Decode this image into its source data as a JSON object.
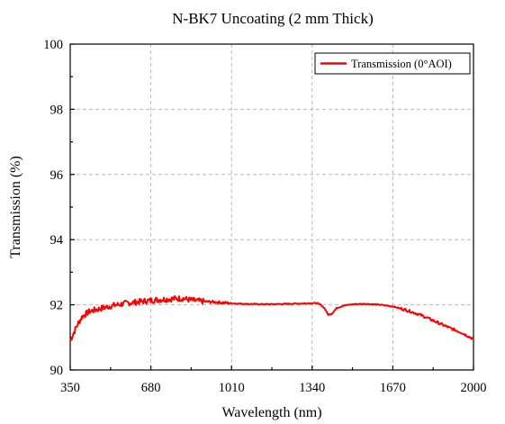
{
  "chart_data": {
    "type": "line",
    "title": "N-BK7 Uncoating (2 mm  Thick)",
    "xlabel": "Wavelength (nm)",
    "ylabel": "Transmission (%)",
    "xlim": [
      350,
      2000
    ],
    "ylim": [
      90,
      100
    ],
    "xticks": [
      350,
      680,
      1010,
      1340,
      1670,
      2000
    ],
    "yticks": [
      90,
      92,
      94,
      96,
      98,
      100
    ],
    "grid": true,
    "legend_position": "top-right",
    "series": [
      {
        "name": "Transmission (0°AOI)",
        "color": "#ff0000",
        "x": [
          350,
          365,
          380,
          400,
          430,
          470,
          520,
          580,
          640,
          700,
          760,
          810,
          840,
          870,
          900,
          950,
          1000,
          1060,
          1120,
          1180,
          1240,
          1300,
          1340,
          1360,
          1375,
          1390,
          1405,
          1420,
          1440,
          1470,
          1510,
          1560,
          1620,
          1670,
          1720,
          1780,
          1840,
          1900,
          1950,
          2000
        ],
        "y": [
          90.9,
          91.15,
          91.4,
          91.65,
          91.8,
          91.88,
          91.97,
          92.05,
          92.1,
          92.15,
          92.18,
          92.2,
          92.15,
          92.12,
          92.1,
          92.08,
          92.05,
          92.03,
          92.02,
          92.02,
          92.03,
          92.04,
          92.05,
          92.05,
          92.0,
          91.9,
          91.7,
          91.72,
          91.9,
          91.98,
          92.02,
          92.03,
          92.0,
          91.95,
          91.85,
          91.7,
          91.5,
          91.3,
          91.15,
          90.95
        ]
      }
    ]
  }
}
